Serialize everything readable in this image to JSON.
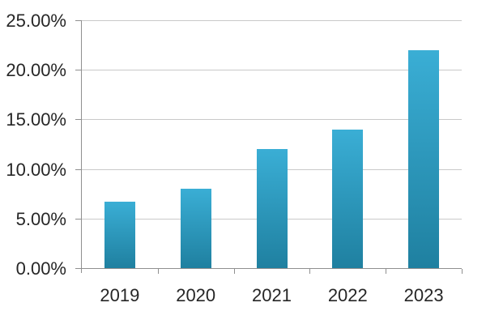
{
  "chart_data": {
    "type": "bar",
    "categories": [
      "2019",
      "2020",
      "2021",
      "2022",
      "2023"
    ],
    "values": [
      6.7,
      8,
      12,
      14,
      22
    ],
    "title": "",
    "xlabel": "",
    "ylabel": "",
    "ylim": [
      0,
      25
    ],
    "ytick_step": 5,
    "ytick_labels": [
      "0.00%",
      "5.00%",
      "10.00%",
      "15.00%",
      "20.00%",
      "25.00%"
    ],
    "grid": true,
    "legend": false,
    "bar_color_top": "#3aaed5",
    "bar_color_bottom": "#1f80a0",
    "gridline_color": "#c9c9c9",
    "axis_color": "#8f8f8f",
    "text_color": "#262626",
    "background_color": "#ffffff"
  }
}
